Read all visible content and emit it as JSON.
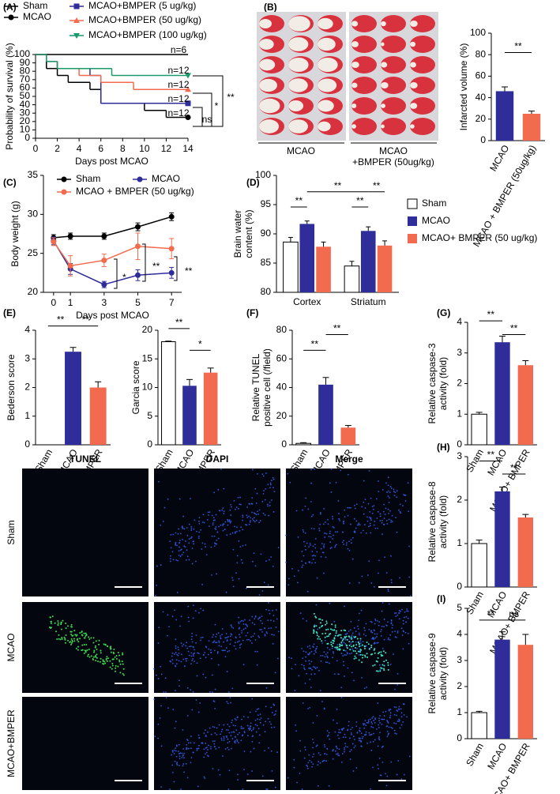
{
  "chart_data": [
    {
      "type": "step_line",
      "panel": "(A)",
      "xlabel": "Days post MCAO",
      "ylabel": [
        "Probability of survival (%)"
      ],
      "xlim": [
        0,
        14
      ],
      "xticks": [
        0,
        2,
        4,
        6,
        8,
        10,
        12,
        14
      ],
      "ylim": [
        0,
        100
      ],
      "yticks": [
        0,
        10,
        20,
        30,
        40,
        50,
        60,
        70,
        80,
        90,
        100
      ],
      "series": [
        {
          "name": "Sham",
          "color": "#000000",
          "marker": "none",
          "x": [
            0
          ],
          "values": [
            100
          ]
        },
        {
          "name": "MCAO",
          "color": "#000000",
          "marker": "circle",
          "x": [
            0,
            1,
            2,
            3,
            5,
            6,
            10,
            12
          ],
          "values": [
            100,
            83.3,
            75,
            66.7,
            58.3,
            41.7,
            33.3,
            25
          ]
        },
        {
          "name": "MCAO+BMPER (5 ug/kg)",
          "color": "#2e2d9a",
          "marker": "square",
          "x": [
            0,
            1,
            2,
            5,
            6
          ],
          "values": [
            100,
            91.7,
            83.3,
            75,
            41.7
          ]
        },
        {
          "name": "MCAO+BMPER (50 ug/kg)",
          "color": "#f26b4f",
          "marker": "triangle",
          "x": [
            0,
            1,
            2,
            4,
            6,
            9
          ],
          "values": [
            100,
            91.7,
            83.3,
            75,
            66.7,
            58.3
          ]
        },
        {
          "name": "MCAO+BMPER (100 ug/kg)",
          "color": "#1a9a6b",
          "marker": "triangle-down",
          "x": [
            0,
            1,
            2,
            7
          ],
          "values": [
            100,
            91.7,
            83.3,
            75
          ]
        }
      ],
      "annotations": [
        "n=6",
        "n=12",
        "n=12",
        "n=12",
        "n=12",
        "ns",
        "*",
        "**"
      ]
    },
    {
      "type": "bar",
      "panel": "(B)",
      "ylabel": [
        "Infarcted volume (%)"
      ],
      "categories": [
        "MCAO",
        "MCAO + BMPER (50ug/kg)"
      ],
      "values": [
        46,
        25
      ],
      "errors": [
        4,
        2.5
      ],
      "colors": [
        "#2e2d9a",
        "#f26b4f"
      ],
      "ylim": [
        0,
        100
      ],
      "yticks": [
        0,
        20,
        40,
        60,
        80,
        100
      ],
      "annotations": [
        "**"
      ]
    },
    {
      "type": "line",
      "panel": "(C)",
      "xlabel": "Days post MCAO",
      "ylabel": [
        "Body weight (g)"
      ],
      "x": [
        0,
        1,
        3,
        5,
        7
      ],
      "xlim": [
        -0.6,
        7.6
      ],
      "xticks": [
        0,
        1,
        3,
        5,
        7
      ],
      "ylim": [
        20,
        35
      ],
      "yticks": [
        20,
        25,
        30,
        35
      ],
      "series": [
        {
          "name": "Sham",
          "color": "#000000",
          "values": [
            27,
            27.2,
            27.2,
            28.4,
            29.7
          ],
          "errors": [
            0.4,
            0.4,
            0.4,
            0.5,
            0.5
          ]
        },
        {
          "name": "MCAO",
          "color": "#2e2d9a",
          "values": [
            26.6,
            23,
            21,
            22.2,
            22.5
          ],
          "errors": [
            0.5,
            0.7,
            0.4,
            0.7,
            0.7
          ]
        },
        {
          "name": "MCAO + BMPER (50 ug/kg)",
          "color": "#f26b4f",
          "values": [
            26.5,
            23.4,
            24.1,
            25.9,
            25.6
          ],
          "errors": [
            0.5,
            1.3,
            0.8,
            1.7,
            1.3
          ]
        }
      ],
      "annotations": [
        "*",
        "**",
        "**"
      ]
    },
    {
      "type": "grouped_bar",
      "panel": "(D)",
      "ylabel": [
        "Brain water",
        "content (%)"
      ],
      "categories": [
        "Cortex",
        "Striatum"
      ],
      "ylim": [
        80,
        100
      ],
      "yticks": [
        80,
        85,
        90,
        95,
        100
      ],
      "series": [
        {
          "name": "Sham",
          "color": "#ffffff",
          "values": [
            88.6,
            84.5
          ],
          "errors": [
            0.8,
            0.8
          ]
        },
        {
          "name": "MCAO",
          "color": "#2e2d9a",
          "values": [
            91.7,
            90.5
          ],
          "errors": [
            0.5,
            0.7
          ]
        },
        {
          "name": "MCAO+ BMPER (50 ug/kg)",
          "color": "#f26b4f",
          "values": [
            87.8,
            88.0
          ],
          "errors": [
            0.8,
            0.8
          ]
        }
      ],
      "annotations": [
        "**",
        "**",
        "**",
        "**"
      ]
    },
    {
      "type": "bar",
      "panel": "(E)",
      "ylabel": [
        "Bederson score"
      ],
      "categories": [
        "Sham",
        "MCAO",
        "MCAO+ BMPER"
      ],
      "values": [
        0,
        3.25,
        2.0
      ],
      "errors": [
        0,
        0.15,
        0.2
      ],
      "colors": [
        "#ffffff",
        "#2e2d9a",
        "#f26b4f"
      ],
      "ylim": [
        0,
        4
      ],
      "yticks": [
        0,
        1,
        2,
        3,
        4
      ],
      "annotations": [
        "**",
        "**"
      ]
    },
    {
      "type": "bar",
      "ylabel": [
        "Garcia score"
      ],
      "categories": [
        "Sham",
        "MCAO",
        "MCAO+ BMPER"
      ],
      "values": [
        18,
        10.3,
        12.6
      ],
      "errors": [
        0.1,
        1.1,
        0.8
      ],
      "colors": [
        "#ffffff",
        "#2e2d9a",
        "#f26b4f"
      ],
      "ylim": [
        0,
        20
      ],
      "yticks": [
        0,
        5,
        10,
        15,
        20
      ],
      "annotations": [
        "**",
        "*"
      ]
    },
    {
      "type": "bar",
      "panel": "(F)",
      "ylabel": [
        "Relative TUNEL",
        "positive cell (/field)"
      ],
      "categories": [
        "Sham",
        "MCAO",
        "MCAO+ BMPER"
      ],
      "values": [
        1,
        42,
        12
      ],
      "errors": [
        0.5,
        5,
        1.5
      ],
      "colors": [
        "#ffffff",
        "#2e2d9a",
        "#f26b4f"
      ],
      "ylim": [
        0,
        80
      ],
      "yticks": [
        0,
        20,
        40,
        60,
        80
      ],
      "annotations": [
        "**",
        "**"
      ]
    },
    {
      "type": "bar",
      "panel": "(G)",
      "ylabel": [
        "Relative caspase-3",
        "activity (fold)"
      ],
      "categories": [
        "Sham",
        "MCAO",
        "MCAO+ BMPER"
      ],
      "values": [
        1,
        3.35,
        2.6
      ],
      "errors": [
        0.06,
        0.2,
        0.15
      ],
      "colors": [
        "#ffffff",
        "#2e2d9a",
        "#f26b4f"
      ],
      "ylim": [
        0,
        4
      ],
      "yticks": [
        0,
        1,
        2,
        3,
        4
      ],
      "annotations": [
        "**",
        "**"
      ]
    },
    {
      "type": "bar",
      "panel": "(H)",
      "ylabel": [
        "Relative caspase-8",
        "activity (fold)"
      ],
      "categories": [
        "Sham",
        "MCAO",
        "MCAO+ BMPER"
      ],
      "values": [
        1,
        2.2,
        1.6
      ],
      "errors": [
        0.08,
        0.1,
        0.07
      ],
      "colors": [
        "#ffffff",
        "#2e2d9a",
        "#f26b4f"
      ],
      "ylim": [
        0,
        3
      ],
      "yticks": [
        0,
        1,
        2,
        3
      ],
      "annotations": [
        "**",
        "**"
      ]
    },
    {
      "type": "bar",
      "panel": "(I)",
      "ylabel": [
        "Relative caspase-9",
        "activity (fold)"
      ],
      "categories": [
        "Sham",
        "MCAO",
        "MCAO+ BMPER"
      ],
      "values": [
        1,
        3.8,
        3.6
      ],
      "errors": [
        0.05,
        0.3,
        0.4
      ],
      "colors": [
        "#ffffff",
        "#2e2d9a",
        "#f26b4f"
      ],
      "ylim": [
        0,
        5
      ],
      "yticks": [
        0,
        1,
        2,
        3,
        4,
        5
      ],
      "annotations": [
        "**",
        "ns"
      ]
    }
  ],
  "infarct_images": {
    "labels": [
      [
        "MCAO"
      ],
      [
        "MCAO",
        "+BMPER (50ug/kg)"
      ]
    ]
  },
  "tunel_images": {
    "columns": [
      "TUNEL",
      "DAPI",
      "Merge"
    ],
    "rows": [
      "Sham",
      "MCAO",
      "MCAO+BMPER"
    ]
  }
}
